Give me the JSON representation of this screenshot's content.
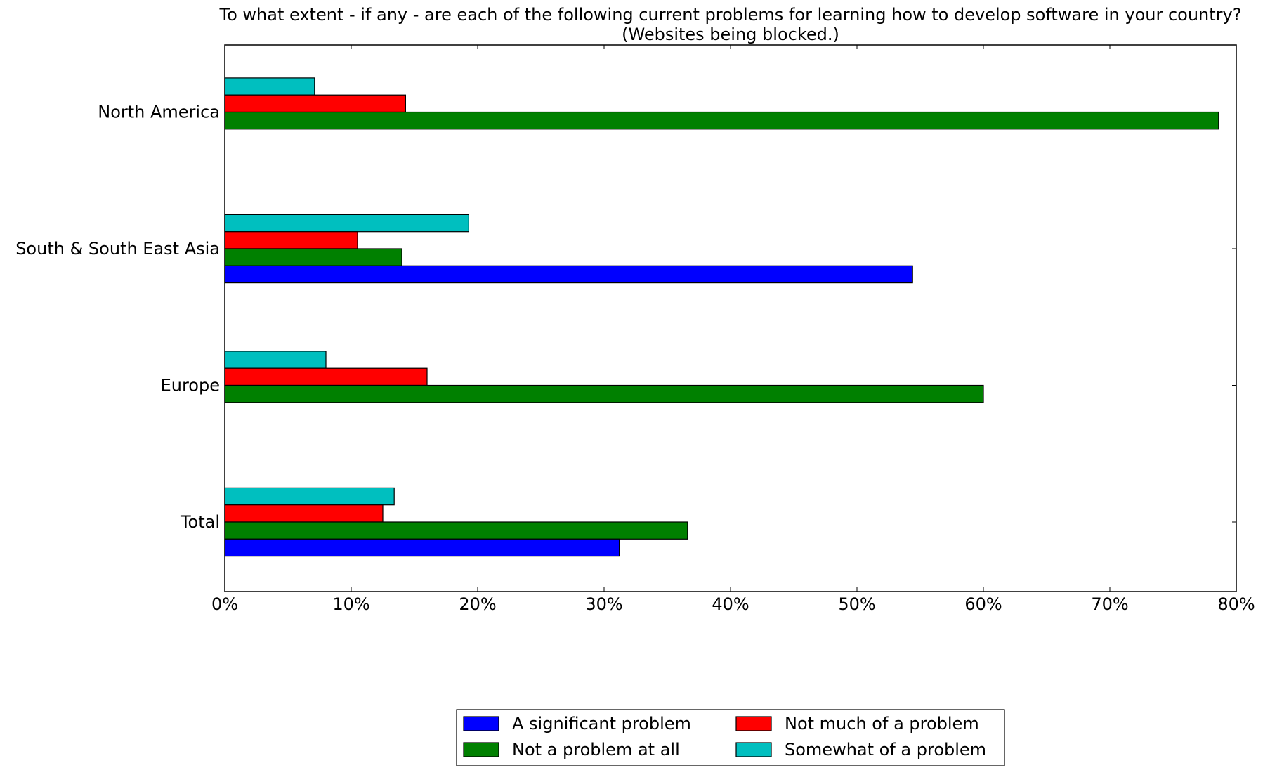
{
  "chart_data": {
    "type": "bar",
    "orientation": "horizontal",
    "title": "To what extent - if any - are each of the following current problems for learning how to develop software in your country?",
    "subtitle": "(Websites being blocked.)",
    "categories": [
      "North America",
      "South & South East Asia",
      "Europe",
      "Total"
    ],
    "xlim": [
      0,
      80
    ],
    "x_ticks": [
      "0%",
      "10%",
      "20%",
      "30%",
      "40%",
      "50%",
      "60%",
      "70%",
      "80%"
    ],
    "grid": false,
    "legend_position": "bottom-center",
    "series": [
      {
        "name": "Somewhat of a problem",
        "color": "#00bfbf",
        "values": [
          7.1,
          19.3,
          8.0,
          13.4
        ]
      },
      {
        "name": "Not much of a problem",
        "color": "#ff0000",
        "values": [
          14.3,
          10.5,
          16.0,
          12.5
        ]
      },
      {
        "name": "Not a problem at all",
        "color": "#008000",
        "values": [
          78.6,
          14.0,
          60.0,
          36.6
        ]
      },
      {
        "name": "A significant problem",
        "color": "#0000ff",
        "values": [
          0,
          54.4,
          0,
          31.2
        ]
      }
    ],
    "legend": [
      {
        "name": "A significant problem",
        "color": "#0000ff"
      },
      {
        "name": "Not much of a problem",
        "color": "#ff0000"
      },
      {
        "name": "Not a problem at all",
        "color": "#008000"
      },
      {
        "name": "Somewhat of a problem",
        "color": "#00bfbf"
      }
    ]
  }
}
